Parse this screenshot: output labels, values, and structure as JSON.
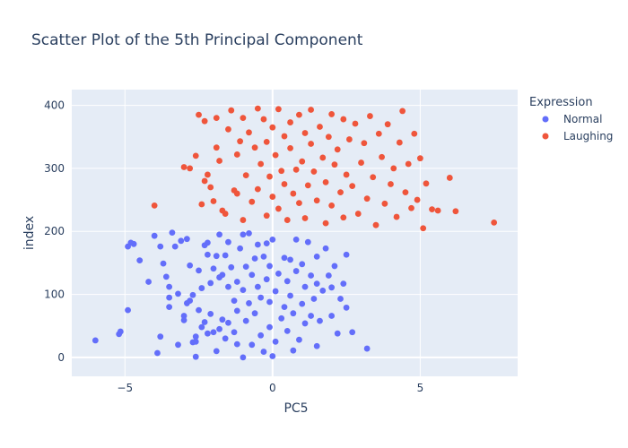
{
  "chart_data": {
    "type": "scatter",
    "title": "Scatter Plot of the 5th Principal Component",
    "xlabel": "PC5",
    "ylabel": "index",
    "xlim": [
      -6.8,
      8.3
    ],
    "ylim": [
      -30,
      425
    ],
    "x_ticks": [
      -5,
      0,
      5
    ],
    "y_ticks": [
      0,
      100,
      200,
      300,
      400
    ],
    "x_tick_labels": [
      "−5",
      "0",
      "5"
    ],
    "y_tick_labels": [
      "0",
      "100",
      "200",
      "300",
      "400"
    ],
    "grid": true,
    "legend": {
      "title": "Expression",
      "placement": "top-right"
    },
    "series": [
      {
        "name": "Normal",
        "color": "#636efa",
        "points": [
          [
            -6.0,
            27
          ],
          [
            -5.2,
            37
          ],
          [
            -5.15,
            41
          ],
          [
            -4.9,
            75
          ],
          [
            -4.9,
            176
          ],
          [
            -4.8,
            182
          ],
          [
            -4.7,
            180
          ],
          [
            -4.5,
            154
          ],
          [
            -4.2,
            120
          ],
          [
            -4.0,
            193
          ],
          [
            -3.9,
            7
          ],
          [
            -3.8,
            33
          ],
          [
            -3.8,
            176
          ],
          [
            -3.7,
            149
          ],
          [
            -3.6,
            128
          ],
          [
            -3.5,
            95
          ],
          [
            -3.5,
            80
          ],
          [
            -3.5,
            112
          ],
          [
            -3.4,
            198
          ],
          [
            -3.3,
            176
          ],
          [
            -3.2,
            20
          ],
          [
            -3.2,
            101
          ],
          [
            -3.1,
            185
          ],
          [
            -3.0,
            66
          ],
          [
            -3.0,
            59
          ],
          [
            -2.9,
            86
          ],
          [
            -2.9,
            188
          ],
          [
            -2.8,
            146
          ],
          [
            -2.8,
            90
          ],
          [
            -2.7,
            99
          ],
          [
            -2.7,
            24
          ],
          [
            -2.6,
            33
          ],
          [
            -2.6,
            25
          ],
          [
            -2.6,
            1
          ],
          [
            -2.5,
            138
          ],
          [
            -2.5,
            75
          ],
          [
            -2.4,
            48
          ],
          [
            -2.4,
            110
          ],
          [
            -2.3,
            56
          ],
          [
            -2.3,
            178
          ],
          [
            -2.2,
            182
          ],
          [
            -2.2,
            38
          ],
          [
            -2.2,
            163
          ],
          [
            -2.1,
            118
          ],
          [
            -2.1,
            69
          ],
          [
            -2.0,
            40
          ],
          [
            -2.0,
            141
          ],
          [
            -1.9,
            10
          ],
          [
            -1.9,
            161
          ],
          [
            -1.8,
            45
          ],
          [
            -1.8,
            127
          ],
          [
            -1.8,
            195
          ],
          [
            -1.7,
            60
          ],
          [
            -1.7,
            131
          ],
          [
            -1.6,
            30
          ],
          [
            -1.6,
            162
          ],
          [
            -1.5,
            112
          ],
          [
            -1.5,
            183
          ],
          [
            -1.5,
            55
          ],
          [
            -1.4,
            143
          ],
          [
            -1.3,
            90
          ],
          [
            -1.3,
            40
          ],
          [
            -1.2,
            74
          ],
          [
            -1.2,
            21
          ],
          [
            -1.2,
            120
          ],
          [
            -1.1,
            173
          ],
          [
            -1.0,
            107
          ],
          [
            -1.0,
            0
          ],
          [
            -1.0,
            195
          ],
          [
            -0.9,
            144
          ],
          [
            -0.9,
            58
          ],
          [
            -0.8,
            86
          ],
          [
            -0.8,
            197
          ],
          [
            -0.7,
            131
          ],
          [
            -0.7,
            20
          ],
          [
            -0.6,
            157
          ],
          [
            -0.6,
            70
          ],
          [
            -0.5,
            112
          ],
          [
            -0.5,
            179
          ],
          [
            -0.4,
            35
          ],
          [
            -0.4,
            95
          ],
          [
            -0.3,
            9
          ],
          [
            -0.3,
            160
          ],
          [
            -0.2,
            124
          ],
          [
            -0.2,
            181
          ],
          [
            -0.1,
            48
          ],
          [
            -0.1,
            88
          ],
          [
            -0.1,
            145
          ],
          [
            0.0,
            2
          ],
          [
            0.0,
            187
          ],
          [
            0.1,
            105
          ],
          [
            0.1,
            25
          ],
          [
            0.2,
            133
          ],
          [
            0.3,
            62
          ],
          [
            0.4,
            158
          ],
          [
            0.4,
            80
          ],
          [
            0.5,
            42
          ],
          [
            0.5,
            121
          ],
          [
            0.6,
            98
          ],
          [
            0.6,
            155
          ],
          [
            0.7,
            11
          ],
          [
            0.7,
            70
          ],
          [
            0.8,
            187
          ],
          [
            0.8,
            137
          ],
          [
            0.9,
            28
          ],
          [
            1.0,
            85
          ],
          [
            1.0,
            148
          ],
          [
            1.1,
            54
          ],
          [
            1.1,
            112
          ],
          [
            1.2,
            183
          ],
          [
            1.3,
            130
          ],
          [
            1.3,
            66
          ],
          [
            1.4,
            93
          ],
          [
            1.5,
            18
          ],
          [
            1.5,
            117
          ],
          [
            1.5,
            160
          ],
          [
            1.6,
            58
          ],
          [
            1.7,
            106
          ],
          [
            1.8,
            173
          ],
          [
            1.9,
            130
          ],
          [
            2.0,
            66
          ],
          [
            2.0,
            111
          ],
          [
            2.1,
            145
          ],
          [
            2.2,
            38
          ],
          [
            2.3,
            93
          ],
          [
            2.4,
            117
          ],
          [
            2.5,
            163
          ],
          [
            2.5,
            79
          ],
          [
            2.7,
            40
          ],
          [
            3.2,
            14
          ]
        ]
      },
      {
        "name": "Laughing",
        "color": "#ef553b",
        "points": [
          [
            -4.0,
            241
          ],
          [
            -3.0,
            302
          ],
          [
            -2.8,
            300
          ],
          [
            -2.6,
            320
          ],
          [
            -2.5,
            385
          ],
          [
            -2.4,
            243
          ],
          [
            -2.3,
            375
          ],
          [
            -2.3,
            280
          ],
          [
            -2.2,
            290
          ],
          [
            -2.1,
            270
          ],
          [
            -2.0,
            248
          ],
          [
            -1.9,
            333
          ],
          [
            -1.9,
            380
          ],
          [
            -1.8,
            312
          ],
          [
            -1.7,
            233
          ],
          [
            -1.6,
            228
          ],
          [
            -1.5,
            362
          ],
          [
            -1.4,
            392
          ],
          [
            -1.3,
            265
          ],
          [
            -1.2,
            322
          ],
          [
            -1.2,
            260
          ],
          [
            -1.1,
            343
          ],
          [
            -1.0,
            380
          ],
          [
            -1.0,
            218
          ],
          [
            -0.9,
            289
          ],
          [
            -0.8,
            357
          ],
          [
            -0.7,
            247
          ],
          [
            -0.6,
            333
          ],
          [
            -0.5,
            267
          ],
          [
            -0.5,
            395
          ],
          [
            -0.4,
            307
          ],
          [
            -0.3,
            378
          ],
          [
            -0.2,
            225
          ],
          [
            -0.2,
            342
          ],
          [
            -0.1,
            287
          ],
          [
            0.0,
            255
          ],
          [
            0.0,
            365
          ],
          [
            0.1,
            321
          ],
          [
            0.2,
            394
          ],
          [
            0.2,
            236
          ],
          [
            0.3,
            296
          ],
          [
            0.4,
            351
          ],
          [
            0.4,
            275
          ],
          [
            0.5,
            218
          ],
          [
            0.6,
            373
          ],
          [
            0.6,
            332
          ],
          [
            0.7,
            260
          ],
          [
            0.8,
            298
          ],
          [
            0.9,
            385
          ],
          [
            0.9,
            245
          ],
          [
            1.0,
            311
          ],
          [
            1.1,
            356
          ],
          [
            1.1,
            221
          ],
          [
            1.2,
            273
          ],
          [
            1.3,
            339
          ],
          [
            1.3,
            393
          ],
          [
            1.4,
            295
          ],
          [
            1.5,
            249
          ],
          [
            1.6,
            366
          ],
          [
            1.7,
            317
          ],
          [
            1.8,
            213
          ],
          [
            1.8,
            278
          ],
          [
            1.9,
            350
          ],
          [
            2.0,
            386
          ],
          [
            2.0,
            241
          ],
          [
            2.1,
            306
          ],
          [
            2.2,
            330
          ],
          [
            2.3,
            262
          ],
          [
            2.4,
            378
          ],
          [
            2.4,
            222
          ],
          [
            2.5,
            290
          ],
          [
            2.6,
            346
          ],
          [
            2.7,
            272
          ],
          [
            2.8,
            371
          ],
          [
            2.9,
            228
          ],
          [
            3.0,
            309
          ],
          [
            3.1,
            340
          ],
          [
            3.2,
            252
          ],
          [
            3.3,
            383
          ],
          [
            3.4,
            286
          ],
          [
            3.5,
            210
          ],
          [
            3.6,
            355
          ],
          [
            3.7,
            318
          ],
          [
            3.8,
            244
          ],
          [
            3.9,
            370
          ],
          [
            4.0,
            275
          ],
          [
            4.1,
            300
          ],
          [
            4.2,
            223
          ],
          [
            4.3,
            341
          ],
          [
            4.4,
            391
          ],
          [
            4.5,
            262
          ],
          [
            4.6,
            307
          ],
          [
            4.7,
            237
          ],
          [
            4.8,
            355
          ],
          [
            4.9,
            250
          ],
          [
            5.0,
            316
          ],
          [
            5.1,
            205
          ],
          [
            5.2,
            276
          ],
          [
            5.4,
            235
          ],
          [
            5.6,
            233
          ],
          [
            6.0,
            285
          ],
          [
            6.2,
            232
          ],
          [
            7.5,
            214
          ]
        ]
      }
    ]
  }
}
